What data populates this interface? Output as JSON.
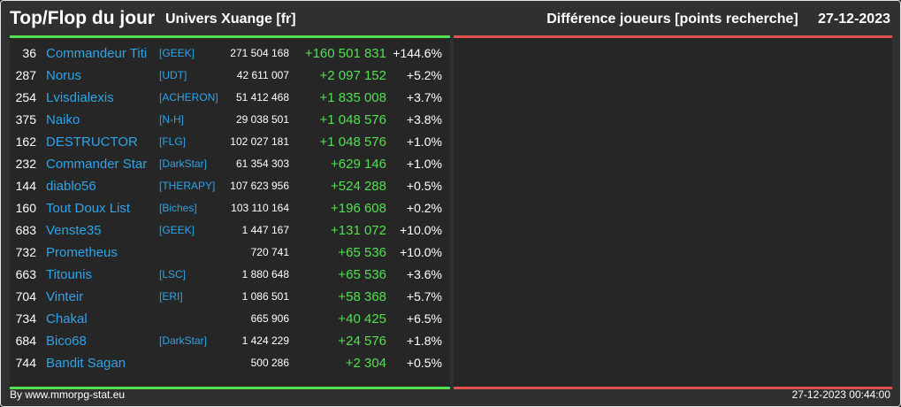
{
  "header": {
    "title": "Top/Flop du jour",
    "universe": "Univers Xuange [fr]",
    "metric": "Différence joueurs [points recherche]",
    "date": "27-12-2023"
  },
  "colors": {
    "positive": "#52e052",
    "negative": "#e0534f",
    "link": "#2fa4e7"
  },
  "top_players": [
    {
      "rank": "36",
      "name": "Commandeur Titi",
      "alliance": "[GEEK]",
      "points": "271 504 168",
      "diff": "+160 501 831",
      "pct": "+144.6%"
    },
    {
      "rank": "287",
      "name": "Norus",
      "alliance": "[UDT]",
      "points": "42 611 007",
      "diff": "+2 097 152",
      "pct": "+5.2%"
    },
    {
      "rank": "254",
      "name": "Lvisdialexis",
      "alliance": "[ACHERON]",
      "points": "51 412 468",
      "diff": "+1 835 008",
      "pct": "+3.7%"
    },
    {
      "rank": "375",
      "name": "Naiko",
      "alliance": "[N-H]",
      "points": "29 038 501",
      "diff": "+1 048 576",
      "pct": "+3.8%"
    },
    {
      "rank": "162",
      "name": "DESTRUCTOR",
      "alliance": "[FLG]",
      "points": "102 027 181",
      "diff": "+1 048 576",
      "pct": "+1.0%"
    },
    {
      "rank": "232",
      "name": "Commander Star",
      "alliance": "[DarkStar]",
      "points": "61 354 303",
      "diff": "+629 146",
      "pct": "+1.0%"
    },
    {
      "rank": "144",
      "name": "diablo56",
      "alliance": "[THERAPY]",
      "points": "107 623 956",
      "diff": "+524 288",
      "pct": "+0.5%"
    },
    {
      "rank": "160",
      "name": "Tout Doux List",
      "alliance": "[Biches]",
      "points": "103 110 164",
      "diff": "+196 608",
      "pct": "+0.2%"
    },
    {
      "rank": "683",
      "name": "Venste35",
      "alliance": "[GEEK]",
      "points": "1 447 167",
      "diff": "+131 072",
      "pct": "+10.0%"
    },
    {
      "rank": "732",
      "name": "Prometheus",
      "alliance": "",
      "points": "720 741",
      "diff": "+65 536",
      "pct": "+10.0%"
    },
    {
      "rank": "663",
      "name": "Titounis",
      "alliance": "[LSC]",
      "points": "1 880 648",
      "diff": "+65 536",
      "pct": "+3.6%"
    },
    {
      "rank": "704",
      "name": "Vinteir",
      "alliance": "[ERI]",
      "points": "1 086 501",
      "diff": "+58 368",
      "pct": "+5.7%"
    },
    {
      "rank": "734",
      "name": "Chakal",
      "alliance": "",
      "points": "665 906",
      "diff": "+40 425",
      "pct": "+6.5%"
    },
    {
      "rank": "684",
      "name": "Bico68",
      "alliance": "[DarkStar]",
      "points": "1 424 229",
      "diff": "+24 576",
      "pct": "+1.8%"
    },
    {
      "rank": "744",
      "name": "Bandit Sagan",
      "alliance": "",
      "points": "500 286",
      "diff": "+2 304",
      "pct": "+0.5%"
    }
  ],
  "flop_players": [],
  "footer": {
    "credit": "By www.mmorpg-stat.eu",
    "timestamp": "27-12-2023 00:44:00"
  }
}
